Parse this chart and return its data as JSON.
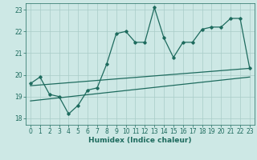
{
  "xlabel": "Humidex (Indice chaleur)",
  "x_ticks": [
    0,
    1,
    2,
    3,
    4,
    5,
    6,
    7,
    8,
    9,
    10,
    11,
    12,
    13,
    14,
    15,
    16,
    17,
    18,
    19,
    20,
    21,
    22,
    23
  ],
  "xlim": [
    -0.5,
    23.5
  ],
  "ylim": [
    17.7,
    23.3
  ],
  "y_ticks": [
    18,
    19,
    20,
    21,
    22,
    23
  ],
  "bg_color": "#cde8e5",
  "grid_color": "#a8ccc8",
  "line_color": "#1e6b5e",
  "line1_x": [
    0,
    1,
    2,
    3,
    4,
    5,
    6,
    7,
    8,
    9,
    10,
    11,
    12,
    13,
    14,
    15,
    16,
    17,
    18,
    19,
    20,
    21,
    22,
    23
  ],
  "line1_y": [
    19.6,
    19.9,
    19.1,
    19.0,
    18.2,
    18.6,
    19.3,
    19.4,
    20.5,
    21.9,
    22.0,
    21.5,
    21.5,
    23.1,
    21.7,
    20.8,
    21.5,
    21.5,
    22.1,
    22.2,
    22.2,
    22.6,
    22.6,
    20.3
  ],
  "line2_x": [
    0,
    23
  ],
  "line2_y": [
    19.5,
    20.3
  ],
  "line3_x": [
    0,
    23
  ],
  "line3_y": [
    18.8,
    19.9
  ]
}
